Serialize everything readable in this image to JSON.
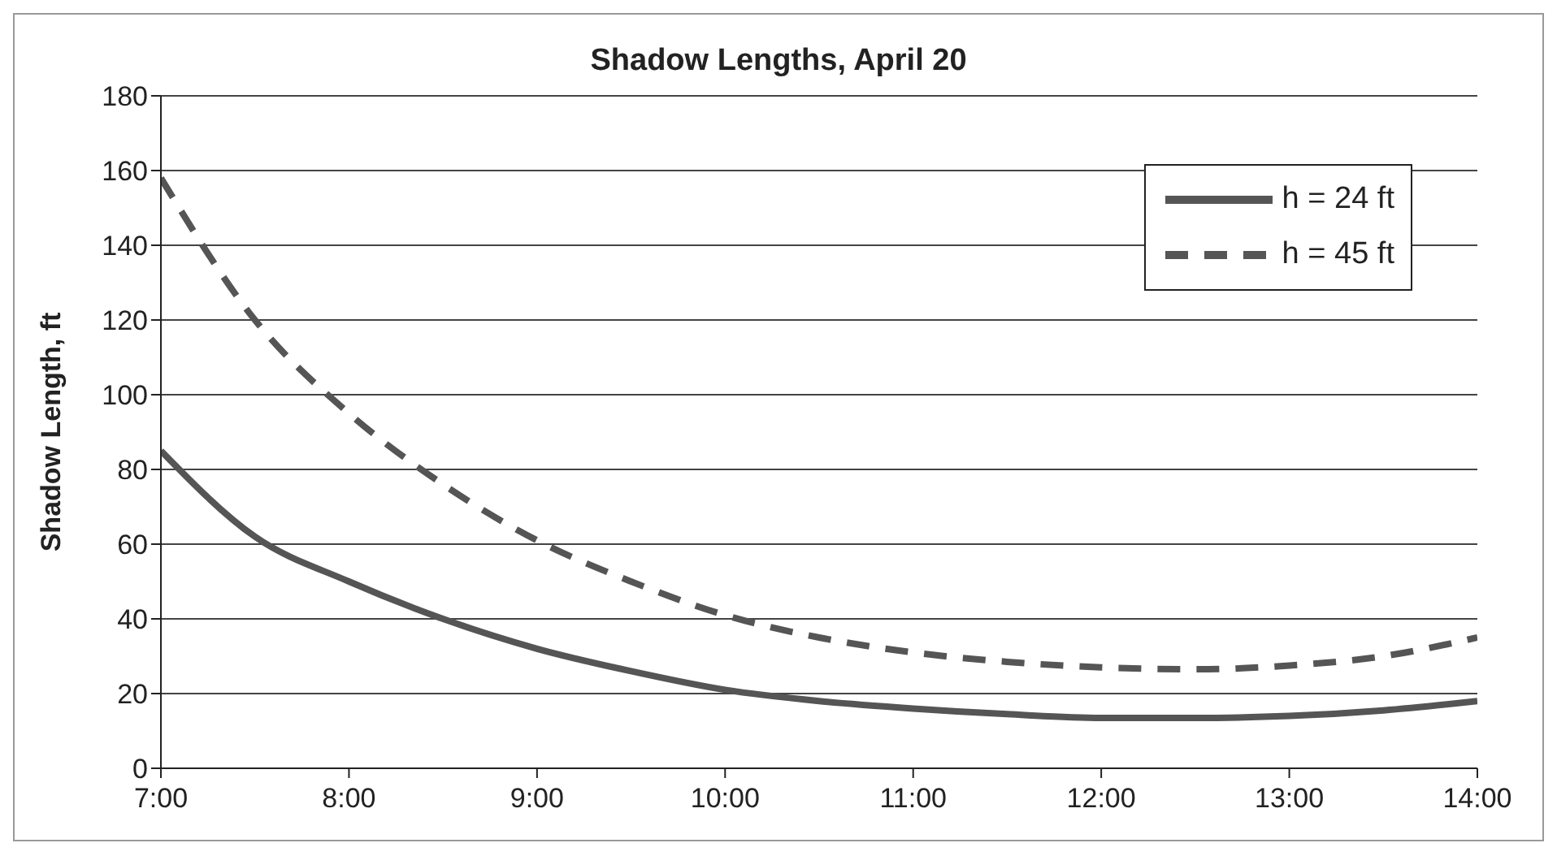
{
  "chart_data": {
    "type": "line",
    "title": "Shadow Lengths, April 20",
    "ylabel": "Shadow Length, ft",
    "x": [
      7,
      7.5,
      8,
      8.5,
      9,
      9.5,
      10,
      10.5,
      11,
      11.5,
      12,
      12.5,
      13,
      13.5,
      14
    ],
    "series": [
      {
        "name": "h = 24 ft",
        "color": "#555555",
        "line_style": "solid",
        "values": [
          85,
          62,
          50,
          40,
          32,
          26,
          21,
          18,
          16,
          14.5,
          13.5,
          13.5,
          14,
          15.5,
          18
        ]
      },
      {
        "name": "h = 45 ft",
        "color": "#555555",
        "line_style": "dashed",
        "values": [
          158,
          120,
          95,
          76,
          61,
          50,
          41,
          35,
          31,
          28.5,
          27,
          26.5,
          27.5,
          30,
          35
        ]
      }
    ],
    "xlim": [
      7,
      14
    ],
    "xticks": [
      {
        "value": 7,
        "label": "7:00"
      },
      {
        "value": 8,
        "label": "8:00"
      },
      {
        "value": 9,
        "label": "9:00"
      },
      {
        "value": 10,
        "label": "10:00"
      },
      {
        "value": 11,
        "label": "11:00"
      },
      {
        "value": 12,
        "label": "12:00"
      },
      {
        "value": 13,
        "label": "13:00"
      },
      {
        "value": 14,
        "label": "14:00"
      }
    ],
    "ylim": [
      0,
      180
    ],
    "yticks": [
      0,
      20,
      40,
      60,
      80,
      100,
      120,
      140,
      160,
      180
    ],
    "grid": "y",
    "legend": "top right",
    "marker": "none"
  }
}
